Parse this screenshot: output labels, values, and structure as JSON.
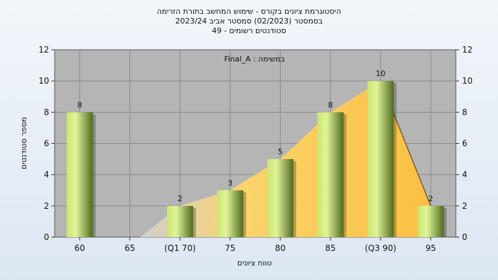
{
  "header": {
    "line1": "היסטוגרמת ציונים בקורס - שימוש המחשב בתורת הזרימה",
    "line2": "בסמסטר  (02/2023)  סמסטר אביב 2023/24",
    "line3": "סטודנטים רשומים - 49"
  },
  "colors": {
    "bar_light": "#d8ef8a",
    "bar_dark": "#4f6a1e",
    "curve_fill": "#ffc94f",
    "plot_bg": "#b5b5b5"
  },
  "chart_data": {
    "type": "bar",
    "annotation": "Final_A : במשימה",
    "xlabel": "טווח ציונים",
    "ylabel": "מספר סטודנטים",
    "ylim": [
      0,
      12
    ],
    "yticks": [
      0,
      2,
      4,
      6,
      8,
      10,
      12
    ],
    "categories": [
      "60",
      "65",
      "(Q1 70)",
      "75",
      "80",
      "85",
      "(Q3 90)",
      "95"
    ],
    "values": [
      8,
      0,
      2,
      3,
      5,
      8,
      10,
      2
    ],
    "value_labels": [
      "8",
      "",
      "2",
      "3",
      "5",
      "8",
      "10",
      "2"
    ],
    "cumulative_curve": [
      0,
      0,
      2,
      3,
      5,
      8,
      10,
      2
    ],
    "grid": true
  }
}
